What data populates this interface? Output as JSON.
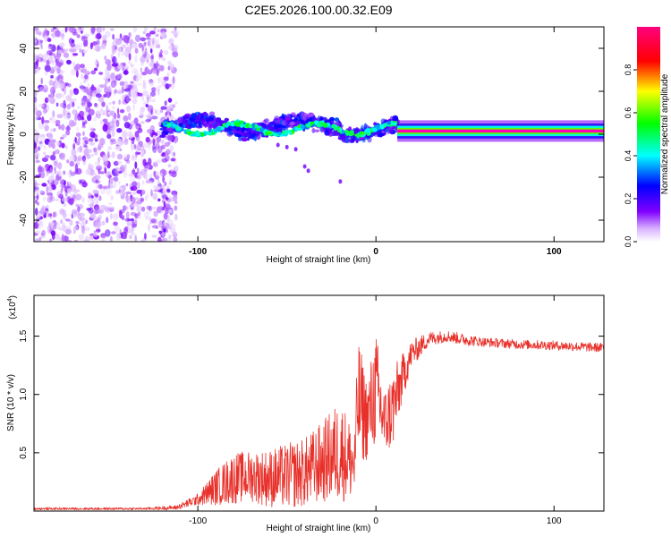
{
  "title": "C2E5.2026.100.00.32.E09",
  "chart_data": [
    {
      "type": "heatmap",
      "xlabel": "Height of straight line (km)",
      "ylabel": "Frequency (Hz)",
      "xlim": [
        -192,
        128
      ],
      "ylim": [
        -50,
        50
      ],
      "xticks": [
        -100,
        0,
        100
      ],
      "xtick_labels": [
        "-100",
        "0",
        "100"
      ],
      "yticks": [
        -40,
        -20,
        0,
        20,
        40
      ],
      "ytick_labels": [
        "-40",
        "-20",
        "0",
        "20",
        "40"
      ],
      "grid": false,
      "colorbar": {
        "label": "Normalized spectral amplitude",
        "range": [
          0,
          1
        ],
        "ticks": [
          0.0,
          0.2,
          0.4,
          0.6,
          0.8
        ],
        "tick_labels": [
          "0.0",
          "0.2",
          "0.4",
          "0.6",
          "0.8"
        ],
        "colors": [
          "#ffffff",
          "#8000ff",
          "#0000ff",
          "#00ffff",
          "#00ff00",
          "#ffff00",
          "#ff0000",
          "#ff00ff"
        ]
      },
      "regions": [
        {
          "name": "noise",
          "x_range": [
            -192,
            -112
          ],
          "y_range": [
            -50,
            50
          ],
          "amplitude": [
            0.02,
            0.18
          ]
        },
        {
          "name": "scattered-band",
          "x_range": [
            -120,
            12
          ],
          "y_range": [
            -5,
            10
          ],
          "amplitude": [
            0.1,
            0.6
          ]
        },
        {
          "name": "stable-line",
          "x_range": [
            12,
            128
          ],
          "center_freq": 1.5,
          "amplitude": [
            0.5,
            1.0
          ]
        }
      ]
    },
    {
      "type": "line",
      "xlabel": "Height of straight line (km)",
      "ylabel": "SNR (10 * v/v)",
      "y_multiplier_label": "(x10",
      "y_multiplier_exp": "4",
      "xlim": [
        -192,
        128
      ],
      "ylim": [
        0,
        1.85
      ],
      "xticks": [
        -100,
        0,
        100
      ],
      "xtick_labels": [
        "-100",
        "0",
        "100"
      ],
      "yticks": [
        0.5,
        1.0,
        1.5
      ],
      "ytick_labels": [
        "0.5",
        "1.0",
        "1.5"
      ],
      "grid": false,
      "series": [
        {
          "name": "SNR",
          "color": "#e8302a",
          "x": [
            -192,
            -130,
            -112,
            -100,
            -90,
            -80,
            -70,
            -60,
            -50,
            -40,
            -30,
            -20,
            -12,
            -10,
            -5,
            0,
            5,
            10,
            15,
            20,
            30,
            40,
            50,
            60,
            80,
            100,
            128
          ],
          "y": [
            0.02,
            0.02,
            0.03,
            0.1,
            0.2,
            0.28,
            0.3,
            0.28,
            0.3,
            0.33,
            0.42,
            0.52,
            0.4,
            0.95,
            0.78,
            1.05,
            0.75,
            0.9,
            1.15,
            1.35,
            1.48,
            1.5,
            1.47,
            1.45,
            1.43,
            1.42,
            1.4
          ],
          "spread": [
            0.01,
            0.01,
            0.02,
            0.05,
            0.15,
            0.22,
            0.22,
            0.25,
            0.28,
            0.3,
            0.35,
            0.45,
            0.3,
            0.55,
            0.35,
            0.5,
            0.3,
            0.35,
            0.2,
            0.12,
            0.06,
            0.05,
            0.05,
            0.04,
            0.04,
            0.04,
            0.04
          ]
        }
      ]
    }
  ]
}
